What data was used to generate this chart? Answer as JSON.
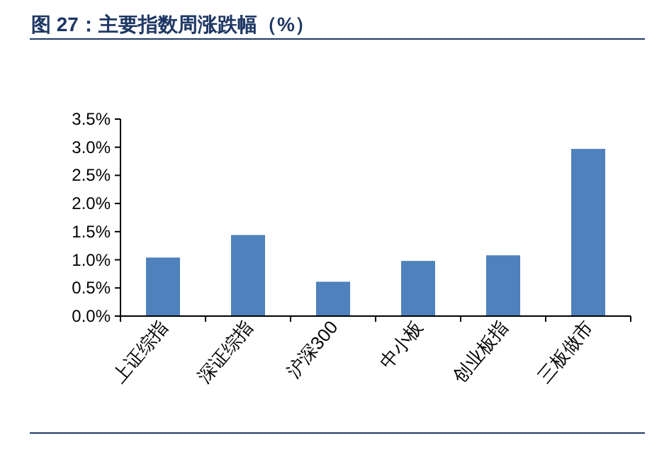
{
  "chart_data": {
    "type": "bar",
    "title": "图 27：主要指数周涨跌幅（%）",
    "categories": [
      "上证综指",
      "深证综指",
      "沪深300",
      "中小板",
      "创业板指",
      "三板做市"
    ],
    "values": [
      1.04,
      1.44,
      0.61,
      0.98,
      1.08,
      2.97
    ],
    "color": "#4f81bd",
    "ylim": [
      0,
      3.5
    ],
    "yticks": [
      {
        "value": 0,
        "label": "0.0%"
      },
      {
        "value": 0.5,
        "label": "0.5%"
      },
      {
        "value": 1,
        "label": "1.0%"
      },
      {
        "value": 1.5,
        "label": "1.5%"
      },
      {
        "value": 2,
        "label": "2.0%"
      },
      {
        "value": 2.5,
        "label": "2.5%"
      },
      {
        "value": 3,
        "label": "3.0%"
      },
      {
        "value": 3.5,
        "label": "3.5%"
      }
    ],
    "grid": false
  }
}
